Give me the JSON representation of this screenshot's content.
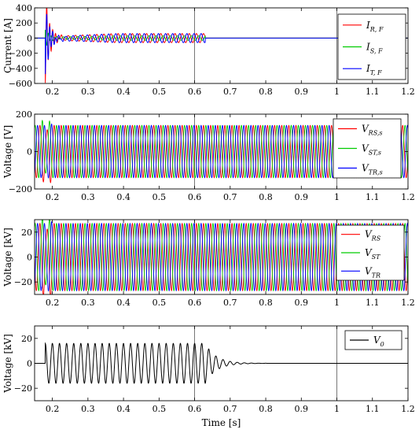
{
  "chart_data": [
    {
      "type": "line",
      "ylabel": "Current [A]",
      "xlim": [
        0.15,
        1.2
      ],
      "ylim": [
        -600,
        400
      ],
      "yticks": [
        "400",
        "200",
        "0",
        "−200",
        "−400",
        "−600"
      ],
      "ytick_values": [
        400,
        200,
        0,
        -200,
        -400,
        -600
      ],
      "xticks": [
        "0.2",
        "0.3",
        "0.4",
        "0.5",
        "0.6",
        "0.7",
        "0.8",
        "0.9",
        "1",
        "1.1",
        "1.2"
      ],
      "xtick_values": [
        0.2,
        0.3,
        0.4,
        0.5,
        0.6,
        0.7,
        0.8,
        0.9,
        1.0,
        1.1,
        1.2
      ],
      "vlines": [
        0.6,
        1.0
      ],
      "legend": "top-right",
      "series": [
        {
          "name_main": "I",
          "name_sub": "R, F",
          "color": "#ff0000",
          "fault_start": 0.18,
          "fault_end": 0.6,
          "peak_first": -600,
          "steady_amp": 60
        },
        {
          "name_main": "I",
          "name_sub": "S, F",
          "color": "#00cc00",
          "fault_start": 0.18,
          "fault_end": 0.6,
          "peak_first": 120,
          "steady_amp": 30
        },
        {
          "name_main": "I",
          "name_sub": "T, F",
          "color": "#0000ff",
          "fault_start": 0.18,
          "fault_end": 0.6,
          "peak_first": -480,
          "steady_amp": 60
        }
      ]
    },
    {
      "type": "line",
      "ylabel": "Voltage [V]",
      "xlim": [
        0.15,
        1.2
      ],
      "ylim": [
        -200,
        200
      ],
      "yticks": [
        "200",
        "0",
        "−200"
      ],
      "ytick_values": [
        200,
        0,
        -200
      ],
      "xticks": [
        "0.2",
        "0.3",
        "0.4",
        "0.5",
        "0.6",
        "0.7",
        "0.8",
        "0.9",
        "1",
        "1.1",
        "1.2"
      ],
      "xtick_values": [
        0.2,
        0.3,
        0.4,
        0.5,
        0.6,
        0.7,
        0.8,
        0.9,
        1.0,
        1.1,
        1.2
      ],
      "vlines": [
        0.6,
        1.0
      ],
      "legend": "top-right",
      "amplitude": 140,
      "frequency": 50,
      "series": [
        {
          "name_main": "V",
          "name_sub": "RS,s",
          "color": "#ff0000",
          "phase_deg": 0
        },
        {
          "name_main": "V",
          "name_sub": "ST,s",
          "color": "#00cc00",
          "phase_deg": -120
        },
        {
          "name_main": "V",
          "name_sub": "TR,s",
          "color": "#0000ff",
          "phase_deg": 120
        }
      ]
    },
    {
      "type": "line",
      "ylabel": "Voltage [kV]",
      "xlim": [
        0.15,
        1.2
      ],
      "ylim": [
        -30,
        30
      ],
      "yticks": [
        "20",
        "0",
        "−20"
      ],
      "ytick_values": [
        20,
        0,
        -20
      ],
      "xticks": [
        "0.2",
        "0.3",
        "0.4",
        "0.5",
        "0.6",
        "0.7",
        "0.8",
        "0.9",
        "1",
        "1.1",
        "1.2"
      ],
      "xtick_values": [
        0.2,
        0.3,
        0.4,
        0.5,
        0.6,
        0.7,
        0.8,
        0.9,
        1.0,
        1.1,
        1.2
      ],
      "vlines": [
        0.6,
        1.0
      ],
      "legend": "top-right",
      "amplitude": 27,
      "frequency": 50,
      "series": [
        {
          "name_main": "V",
          "name_sub": "RS",
          "color": "#ff0000",
          "phase_deg": 0
        },
        {
          "name_main": "V",
          "name_sub": "ST",
          "color": "#00cc00",
          "phase_deg": -120
        },
        {
          "name_main": "V",
          "name_sub": "TR",
          "color": "#0000ff",
          "phase_deg": 120
        }
      ]
    },
    {
      "type": "line",
      "ylabel": "Voltage [kV]",
      "xlabel": "Time [s]",
      "xlim": [
        0.15,
        1.2
      ],
      "ylim": [
        -30,
        30
      ],
      "yticks": [
        "20",
        "0",
        "−20"
      ],
      "ytick_values": [
        20,
        0,
        -20
      ],
      "xticks": [
        "0.2",
        "0.3",
        "0.4",
        "0.5",
        "0.6",
        "0.7",
        "0.8",
        "0.9",
        "1",
        "1.1",
        "1.2"
      ],
      "xtick_values": [
        0.2,
        0.3,
        0.4,
        0.5,
        0.6,
        0.7,
        0.8,
        0.9,
        1.0,
        1.1,
        1.2
      ],
      "vlines": [
        0.6,
        1.0
      ],
      "legend": "top-right",
      "amplitude": 16,
      "frequency": 50,
      "series": [
        {
          "name_main": "V",
          "name_sub": "0",
          "color": "#000000",
          "fault_start": 0.18,
          "fault_end": 0.63
        }
      ]
    }
  ]
}
